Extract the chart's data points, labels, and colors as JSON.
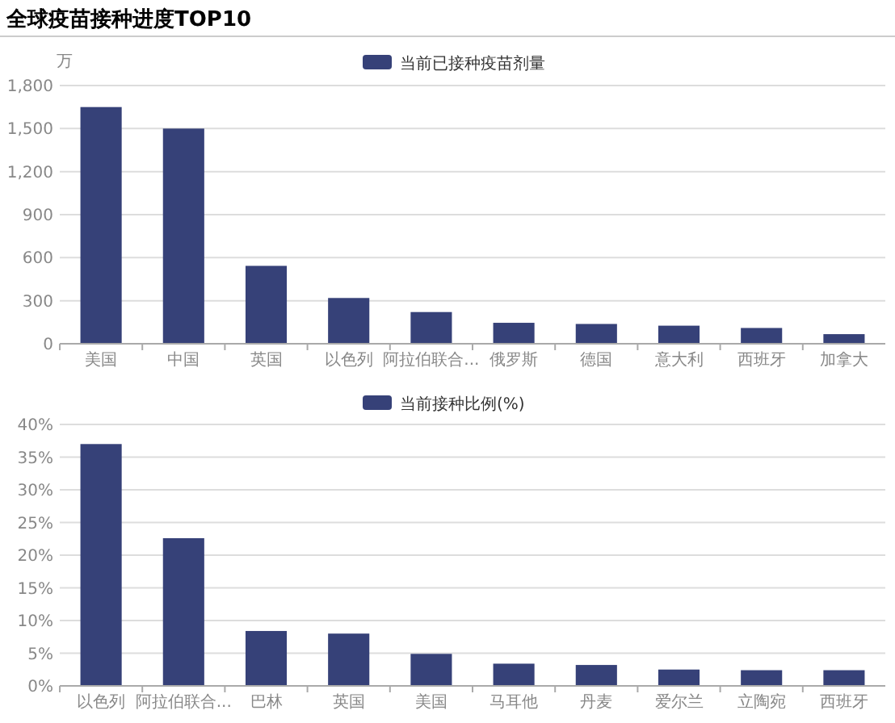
{
  "chart_data": [
    {
      "type": "bar",
      "title": "全球疫苗接种进度TOP10",
      "ylabel": "万",
      "legend": "top",
      "grid": "y",
      "categories": [
        "美国",
        "中国",
        "英国",
        "以色列",
        "阿拉伯联合...",
        "俄罗斯",
        "德国",
        "意大利",
        "西班牙",
        "加拿大"
      ],
      "series": [
        {
          "name": "当前已接种疫苗剂量",
          "color": "#364178",
          "values": [
            1650,
            1500,
            543,
            319,
            221,
            146,
            138,
            126,
            110,
            67
          ]
        }
      ],
      "ylim": [
        0,
        1800
      ],
      "yticks": [
        0,
        300,
        600,
        900,
        {
          "value": 1200,
          "label": "1,200"
        },
        {
          "value": 1500,
          "label": "1,500"
        },
        {
          "value": 1800,
          "label": "1,800"
        }
      ]
    },
    {
      "type": "bar",
      "legend": "top",
      "grid": "y",
      "categories": [
        "以色列",
        "阿拉伯联合...",
        "巴林",
        "英国",
        "美国",
        "马耳他",
        "丹麦",
        "爱尔兰",
        "立陶宛",
        "西班牙"
      ],
      "series": [
        {
          "name": "当前接种比例(%)",
          "color": "#364178",
          "values": [
            37.0,
            22.6,
            8.4,
            8.0,
            4.9,
            3.4,
            3.2,
            2.5,
            2.4,
            2.4
          ]
        }
      ],
      "ylim": [
        0,
        40
      ],
      "yticks": [
        {
          "value": 0,
          "label": "0%"
        },
        {
          "value": 5,
          "label": "5%"
        },
        {
          "value": 10,
          "label": "10%"
        },
        {
          "value": 15,
          "label": "15%"
        },
        {
          "value": 20,
          "label": "20%"
        },
        {
          "value": 25,
          "label": "25%"
        },
        {
          "value": 30,
          "label": "30%"
        },
        {
          "value": 35,
          "label": "35%"
        },
        {
          "value": 40,
          "label": "40%"
        }
      ]
    }
  ]
}
